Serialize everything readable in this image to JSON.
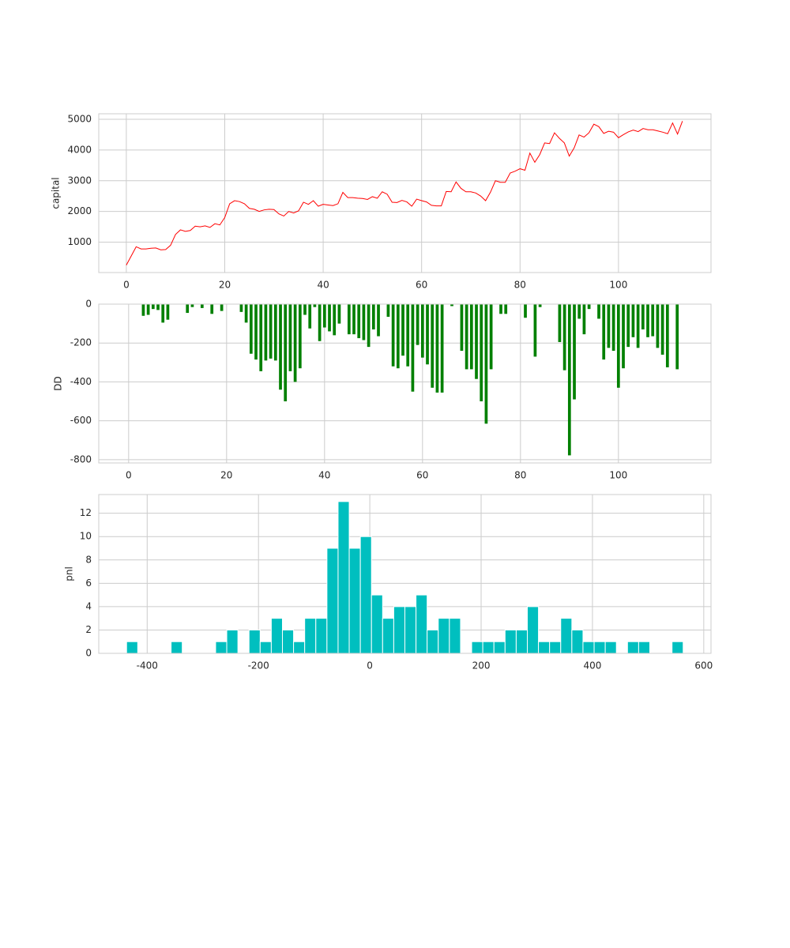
{
  "chart_data": [
    {
      "type": "line",
      "ylabel": "capital",
      "color": "#ff0000",
      "grid": true,
      "x": [
        0,
        1,
        2,
        3,
        4,
        5,
        6,
        7,
        8,
        9,
        10,
        11,
        12,
        13,
        14,
        15,
        16,
        17,
        18,
        19,
        20,
        21,
        22,
        23,
        24,
        25,
        26,
        27,
        28,
        29,
        30,
        31,
        32,
        33,
        34,
        35,
        36,
        37,
        38,
        39,
        40,
        41,
        42,
        43,
        44,
        45,
        46,
        47,
        48,
        49,
        50,
        51,
        52,
        53,
        54,
        55,
        56,
        57,
        58,
        59,
        60,
        61,
        62,
        63,
        64,
        65,
        66,
        67,
        68,
        69,
        70,
        71,
        72,
        73,
        74,
        75,
        76,
        77,
        78,
        79,
        80,
        81,
        82,
        83,
        84,
        85,
        86,
        87,
        88,
        89,
        90,
        91,
        92,
        93,
        94,
        95,
        96,
        97,
        98,
        99,
        100,
        101,
        102,
        103,
        104,
        105,
        106,
        107,
        108,
        109,
        110,
        111,
        112,
        113
      ],
      "values": [
        250,
        550,
        850,
        780,
        780,
        800,
        810,
        750,
        760,
        900,
        1250,
        1400,
        1350,
        1380,
        1520,
        1500,
        1530,
        1480,
        1600,
        1560,
        1800,
        2250,
        2350,
        2320,
        2250,
        2100,
        2070,
        2000,
        2050,
        2070,
        2060,
        1920,
        1850,
        2000,
        1950,
        2020,
        2300,
        2230,
        2350,
        2170,
        2230,
        2210,
        2190,
        2250,
        2620,
        2450,
        2450,
        2430,
        2420,
        2390,
        2480,
        2430,
        2640,
        2560,
        2300,
        2290,
        2360,
        2310,
        2170,
        2400,
        2350,
        2310,
        2200,
        2180,
        2180,
        2650,
        2640,
        2960,
        2750,
        2640,
        2640,
        2600,
        2500,
        2350,
        2630,
        3000,
        2950,
        2950,
        3250,
        3310,
        3390,
        3340,
        3900,
        3600,
        3850,
        4230,
        4210,
        4560,
        4380,
        4230,
        3800,
        4070,
        4490,
        4420,
        4560,
        4840,
        4760,
        4540,
        4610,
        4580,
        4400,
        4500,
        4590,
        4650,
        4600,
        4700,
        4660,
        4660,
        4620,
        4580,
        4530,
        4880,
        4520,
        4940
      ],
      "xlim": [
        -5.6,
        118.8
      ],
      "xticks": [
        0,
        20,
        40,
        60,
        80,
        100
      ],
      "ylim": [
        10,
        5180
      ],
      "yticks": [
        1000,
        2000,
        3000,
        4000,
        5000
      ]
    },
    {
      "type": "bar",
      "ylabel": "DD",
      "color": "#008000",
      "grid": true,
      "x": [
        0,
        1,
        2,
        3,
        4,
        5,
        6,
        7,
        8,
        9,
        10,
        11,
        12,
        13,
        14,
        15,
        16,
        17,
        18,
        19,
        20,
        21,
        22,
        23,
        24,
        25,
        26,
        27,
        28,
        29,
        30,
        31,
        32,
        33,
        34,
        35,
        36,
        37,
        38,
        39,
        40,
        41,
        42,
        43,
        44,
        45,
        46,
        47,
        48,
        49,
        50,
        51,
        52,
        53,
        54,
        55,
        56,
        57,
        58,
        59,
        60,
        61,
        62,
        63,
        64,
        65,
        66,
        67,
        68,
        69,
        70,
        71,
        72,
        73,
        74,
        75,
        76,
        77,
        78,
        79,
        80,
        81,
        82,
        83,
        84,
        85,
        86,
        87,
        88,
        89,
        90,
        91,
        92,
        93,
        94,
        95,
        96,
        97,
        98,
        99,
        100,
        101,
        102,
        103,
        104,
        105,
        106,
        107,
        108,
        109,
        110,
        111,
        112
      ],
      "values": [
        0,
        0,
        0,
        -60,
        -55,
        -25,
        -30,
        -95,
        -80,
        0,
        0,
        0,
        -45,
        -15,
        0,
        -20,
        0,
        -50,
        0,
        -35,
        0,
        0,
        0,
        -40,
        -95,
        -255,
        -285,
        -345,
        -290,
        -280,
        -290,
        -440,
        -500,
        -345,
        -400,
        -330,
        -55,
        -125,
        -15,
        -190,
        -120,
        -140,
        -160,
        -100,
        0,
        -155,
        -155,
        -175,
        -185,
        -220,
        -130,
        -165,
        0,
        -65,
        -320,
        -330,
        -265,
        -320,
        -450,
        -210,
        -275,
        -310,
        -430,
        -455,
        -455,
        0,
        -10,
        0,
        -240,
        -335,
        -335,
        -385,
        -500,
        -615,
        -335,
        0,
        -50,
        -50,
        0,
        0,
        0,
        -70,
        0,
        -270,
        -15,
        0,
        0,
        0,
        -195,
        -340,
        -778,
        -490,
        -75,
        -155,
        -25,
        0,
        -75,
        -285,
        -225,
        -240,
        -430,
        -330,
        -220,
        -170,
        -225,
        -130,
        -170,
        -165,
        -225,
        -260,
        -325,
        0,
        -335
      ],
      "xlim": [
        -6.1,
        118.9
      ],
      "xticks": [
        0,
        20,
        40,
        60,
        80,
        100
      ],
      "ylim": [
        -817,
        0
      ],
      "yticks": [
        -800,
        -600,
        -400,
        -200,
        0
      ]
    },
    {
      "type": "histogram",
      "ylabel": "pnl",
      "color": "#00bfbf",
      "grid": true,
      "bins": [
        -437,
        -417,
        -397,
        -377,
        -357,
        -337,
        -317,
        -297,
        -277,
        -257,
        -237,
        -217,
        -197,
        -177,
        -157,
        -137,
        -117,
        -97,
        -77,
        -57,
        -37,
        -17,
        3,
        23,
        43,
        63,
        83,
        103,
        123,
        143,
        163,
        183,
        203,
        223,
        243,
        263,
        283,
        303,
        323,
        343,
        363,
        383,
        403,
        423,
        443,
        463,
        483,
        503,
        523,
        543,
        563
      ],
      "values": [
        1,
        0,
        0,
        0,
        1,
        0,
        0,
        0,
        1,
        2,
        0,
        2,
        1,
        3,
        2,
        1,
        3,
        3,
        9,
        13,
        9,
        10,
        5,
        3,
        4,
        4,
        5,
        2,
        3,
        3,
        0,
        1,
        1,
        1,
        2,
        2,
        4,
        1,
        1,
        3,
        2,
        1,
        1,
        1,
        0,
        1,
        1,
        0,
        0,
        1
      ],
      "xlim": [
        -487,
        613
      ],
      "xticks": [
        -400,
        -200,
        0,
        200,
        400,
        600
      ],
      "ylim": [
        0,
        13.6
      ],
      "yticks": [
        0,
        2,
        4,
        6,
        8,
        10,
        12
      ]
    }
  ]
}
